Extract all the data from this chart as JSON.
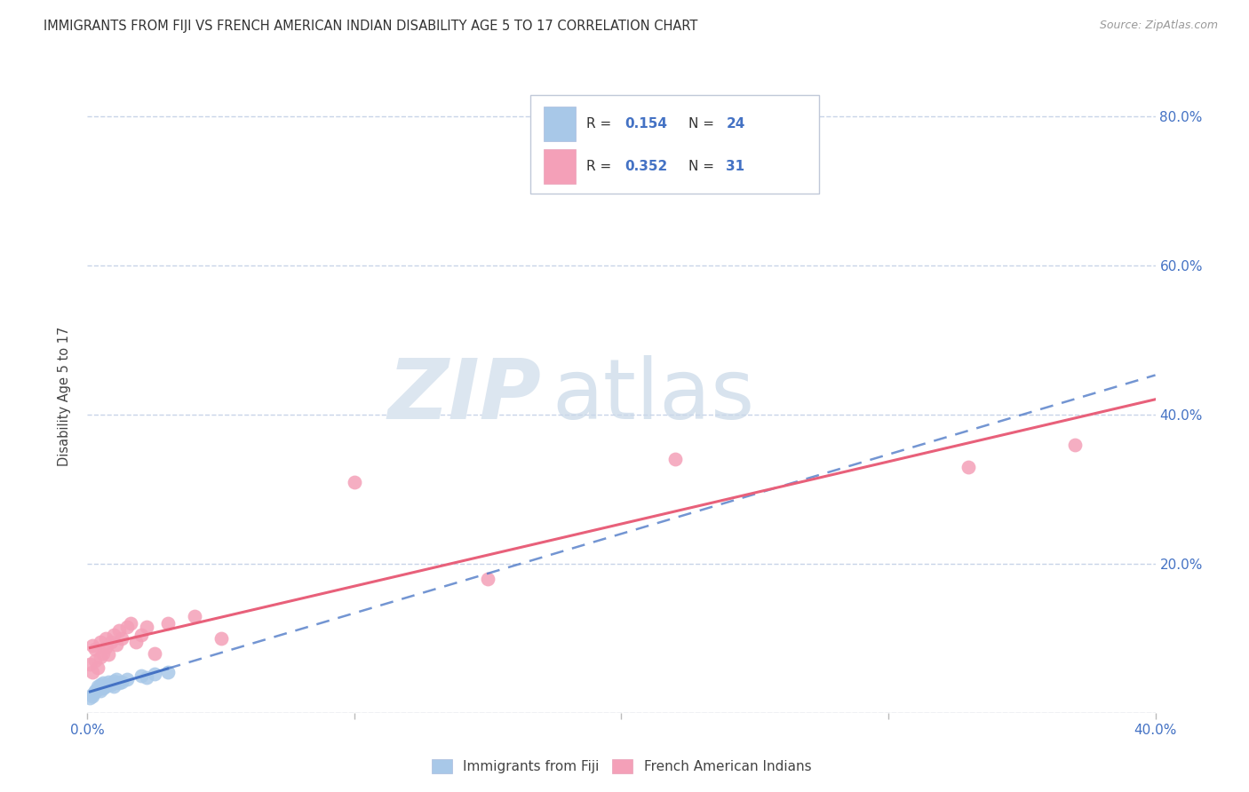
{
  "title": "IMMIGRANTS FROM FIJI VS FRENCH AMERICAN INDIAN DISABILITY AGE 5 TO 17 CORRELATION CHART",
  "source": "Source: ZipAtlas.com",
  "ylabel": "Disability Age 5 to 17",
  "x_min": 0.0,
  "x_max": 0.4,
  "y_min": 0.0,
  "y_max": 0.85,
  "fiji_R": "0.154",
  "fiji_N": "24",
  "french_R": "0.352",
  "french_N": "31",
  "fiji_color": "#a8c8e8",
  "french_color": "#f4a0b8",
  "fiji_line_color": "#4472c4",
  "french_line_color": "#e8607a",
  "label_color": "#4472c4",
  "fiji_scatter_x": [
    0.001,
    0.002,
    0.002,
    0.003,
    0.003,
    0.004,
    0.004,
    0.005,
    0.005,
    0.006,
    0.006,
    0.007,
    0.008,
    0.009,
    0.01,
    0.01,
    0.011,
    0.012,
    0.013,
    0.015,
    0.02,
    0.022,
    0.025,
    0.03
  ],
  "fiji_scatter_y": [
    0.02,
    0.025,
    0.022,
    0.028,
    0.03,
    0.032,
    0.035,
    0.038,
    0.03,
    0.04,
    0.033,
    0.036,
    0.042,
    0.038,
    0.043,
    0.035,
    0.045,
    0.04,
    0.042,
    0.045,
    0.05,
    0.048,
    0.052,
    0.055
  ],
  "french_scatter_x": [
    0.001,
    0.002,
    0.002,
    0.003,
    0.003,
    0.004,
    0.005,
    0.005,
    0.006,
    0.007,
    0.007,
    0.008,
    0.009,
    0.01,
    0.011,
    0.012,
    0.013,
    0.015,
    0.016,
    0.018,
    0.02,
    0.022,
    0.025,
    0.03,
    0.04,
    0.05,
    0.1,
    0.15,
    0.22,
    0.33,
    0.37
  ],
  "french_scatter_y": [
    0.065,
    0.055,
    0.09,
    0.07,
    0.085,
    0.06,
    0.075,
    0.095,
    0.08,
    0.1,
    0.088,
    0.078,
    0.095,
    0.105,
    0.092,
    0.11,
    0.1,
    0.115,
    0.12,
    0.095,
    0.105,
    0.115,
    0.08,
    0.12,
    0.13,
    0.1,
    0.31,
    0.18,
    0.34,
    0.33,
    0.36
  ],
  "watermark_zip": "ZIP",
  "watermark_atlas": "atlas",
  "background_color": "#ffffff",
  "grid_color": "#c8d4e8",
  "legend_fiji_label": "Immigrants from Fiji",
  "legend_french_label": "French American Indians"
}
